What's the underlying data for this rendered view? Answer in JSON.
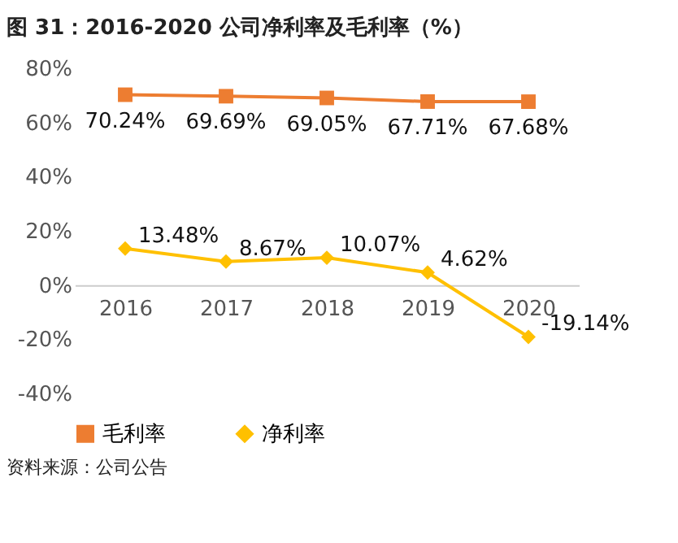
{
  "chart_data": {
    "type": "line",
    "title": "图 31：2016-2020 公司净利率及毛利率（%）",
    "categories": [
      "2016",
      "2017",
      "2018",
      "2019",
      "2020"
    ],
    "series": [
      {
        "name": "毛利率",
        "color": "#ed7d31",
        "marker": "square",
        "values": [
          70.24,
          69.69,
          69.05,
          67.71,
          67.68
        ],
        "value_labels": [
          "70.24%",
          "69.69%",
          "69.05%",
          "67.71%",
          "67.68%"
        ]
      },
      {
        "name": "净利率",
        "color": "#ffc000",
        "marker": "diamond",
        "values": [
          13.48,
          8.67,
          10.07,
          4.62,
          -19.14
        ],
        "value_labels": [
          "13.48%",
          "8.67%",
          "10.07%",
          "4.62%",
          "-19.14%"
        ]
      }
    ],
    "ylim": [
      -40,
      80
    ],
    "yticks": [
      {
        "value": -40,
        "label": "-40%"
      },
      {
        "value": -20,
        "label": "-20%"
      },
      {
        "value": 0,
        "label": "0%"
      },
      {
        "value": 20,
        "label": "20%"
      },
      {
        "value": 40,
        "label": "40%"
      },
      {
        "value": 60,
        "label": "60%"
      },
      {
        "value": 80,
        "label": "80%"
      }
    ],
    "grid": false,
    "legend": "bottom",
    "annotations": [
      "资料来源：公司公告"
    ]
  }
}
